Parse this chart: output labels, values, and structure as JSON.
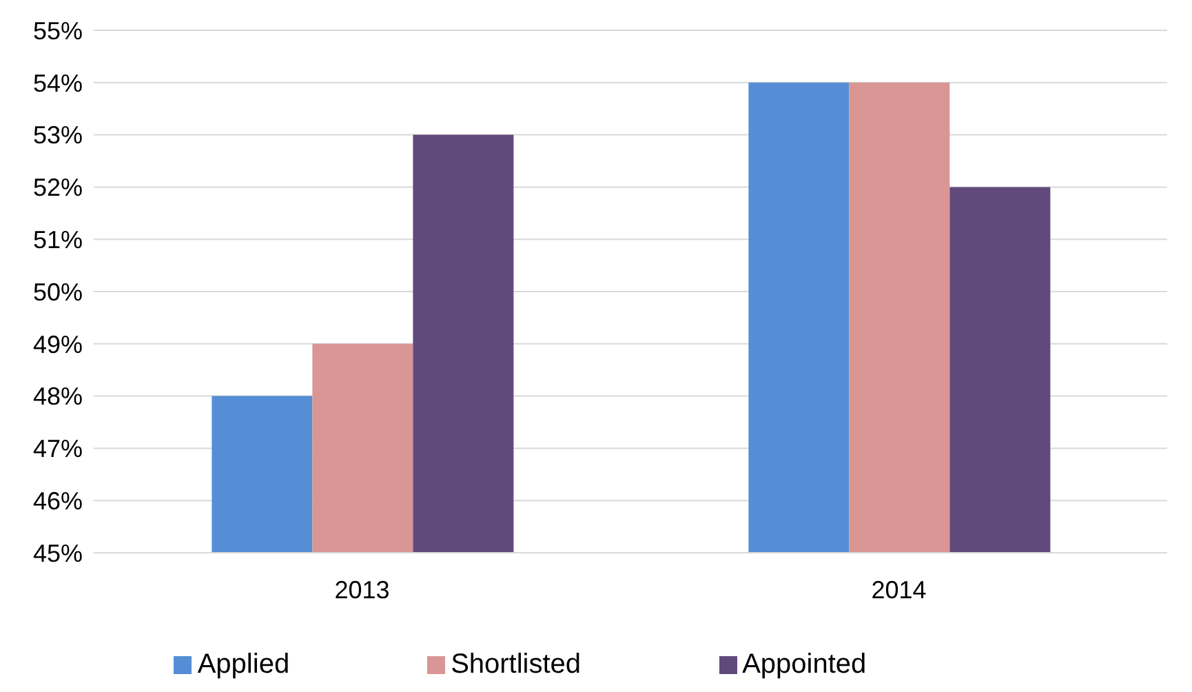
{
  "chart_data": {
    "type": "bar",
    "categories": [
      "2013",
      "2014"
    ],
    "series": [
      {
        "name": "Applied",
        "color": "#558ed5",
        "values": [
          48,
          54
        ]
      },
      {
        "name": "Shortlisted",
        "color": "#d99694",
        "values": [
          49,
          54
        ]
      },
      {
        "name": "Appointed",
        "color": "#604a7b",
        "values": [
          53,
          52
        ]
      }
    ],
    "ylim": [
      45,
      55
    ],
    "yticks": [
      {
        "value": 45,
        "label": "45%"
      },
      {
        "value": 46,
        "label": "46%"
      },
      {
        "value": 47,
        "label": "47%"
      },
      {
        "value": 48,
        "label": "48%"
      },
      {
        "value": 49,
        "label": "49%"
      },
      {
        "value": 50,
        "label": "50%"
      },
      {
        "value": 51,
        "label": "51%"
      },
      {
        "value": 52,
        "label": "52%"
      },
      {
        "value": 53,
        "label": "53%"
      },
      {
        "value": 54,
        "label": "54%"
      },
      {
        "value": 55,
        "label": "55%"
      }
    ],
    "grid": "y",
    "legend": "bottom"
  }
}
